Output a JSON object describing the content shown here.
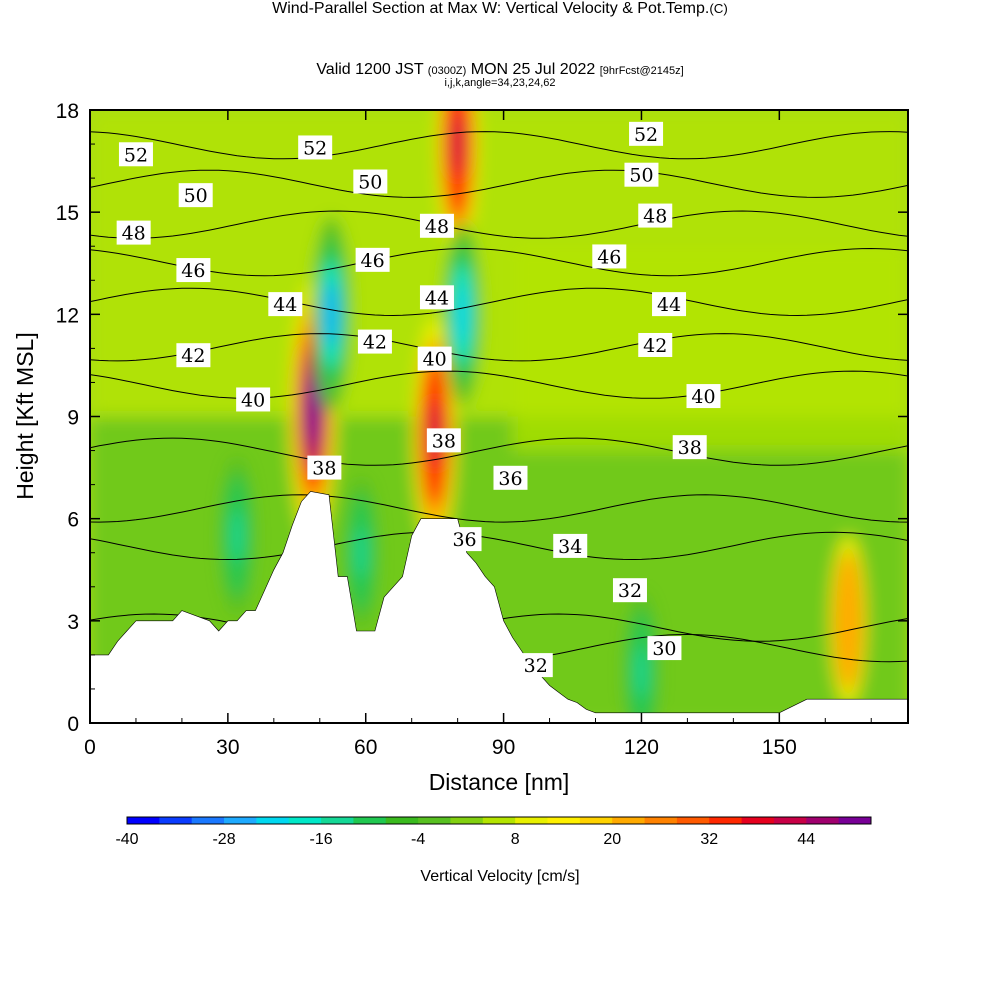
{
  "header": {
    "title": "Wind-Parallel Section at Max W: Vertical Velocity & Pot.Temp.",
    "copyright": "(C)",
    "subtitle_main": "Valid 1200 JST",
    "subtitle_utc": "(0300Z)",
    "subtitle_date": "MON 25 Jul 2022",
    "subtitle_fcst": "[9hrFcst@2145z]",
    "subtitle_params": "i,j,k,angle=34,23,24,62"
  },
  "chart_data": {
    "type": "heatmap",
    "title": "Wind-Parallel Section at Max W: Vertical Velocity & Pot.Temp.",
    "xlabel": "Distance [nm]",
    "ylabel": "Height [Kft MSL]",
    "xlim": [
      0,
      178
    ],
    "ylim": [
      0,
      18
    ],
    "xticks": [
      0,
      30,
      60,
      90,
      120,
      150
    ],
    "yticks": [
      0,
      3,
      6,
      9,
      12,
      15,
      18
    ],
    "colorbar": {
      "label": "Vertical Velocity [cm/s]",
      "ticks": [
        -40,
        -28,
        -16,
        -4,
        8,
        20,
        32,
        44
      ],
      "range": [
        -40,
        52
      ],
      "step": 4,
      "colors": [
        "#0000ff",
        "#0a3cff",
        "#1a78ff",
        "#1eaaff",
        "#00d8f0",
        "#00e8c8",
        "#14d896",
        "#20c850",
        "#3aba1e",
        "#58c020",
        "#82d010",
        "#b4e400",
        "#e8f000",
        "#fff000",
        "#ffd200",
        "#ffaa00",
        "#ff8200",
        "#ff5a00",
        "#ff2800",
        "#e6001e",
        "#c80046",
        "#a0006e",
        "#780096"
      ]
    },
    "terrain_profile": {
      "x": [
        0,
        4,
        6,
        8,
        10,
        14,
        18,
        20,
        26,
        28,
        30,
        32,
        34,
        36,
        38,
        40,
        42,
        44,
        46,
        48,
        52,
        54,
        56,
        58,
        62,
        64,
        66,
        68,
        70,
        72,
        74,
        76,
        80,
        82,
        84,
        86,
        88,
        90,
        92,
        94,
        96,
        98,
        100,
        102,
        104,
        106,
        108,
        110,
        114,
        150,
        156,
        170,
        178
      ],
      "height": [
        2,
        2,
        2.4,
        2.7,
        3,
        3,
        3,
        3.3,
        3,
        2.7,
        3,
        3,
        3.3,
        3.3,
        3.9,
        4.5,
        5,
        5.8,
        6.5,
        6.8,
        6.7,
        4.3,
        4.3,
        2.7,
        2.7,
        3.7,
        4,
        4.3,
        5.5,
        6,
        6,
        6,
        6,
        5,
        4.7,
        4.3,
        4,
        3,
        2.5,
        2.1,
        1.7,
        1.4,
        1.1,
        0.9,
        0.7,
        0.6,
        0.4,
        0.3,
        0.3,
        0.3,
        0.7,
        0.7,
        0.7
      ]
    },
    "w_features": [
      {
        "x": 48.5,
        "height": 9.2,
        "w_cm_s": 50
      },
      {
        "x": 52.5,
        "height": 12,
        "w_cm_s": -28
      },
      {
        "x": 75,
        "height": 8.5,
        "w_cm_s": 40
      },
      {
        "x": 80,
        "height": 17,
        "w_cm_s": 40
      },
      {
        "x": 81,
        "height": 12,
        "w_cm_s": -24
      },
      {
        "x": 32,
        "height": 5.5,
        "w_cm_s": -16
      },
      {
        "x": 120,
        "height": 1.5,
        "w_cm_s": -16
      },
      {
        "x": 165,
        "height": 3,
        "w_cm_s": 20
      },
      {
        "x": 59,
        "height": 5,
        "w_cm_s": -14
      }
    ],
    "theta_labels": [
      {
        "value": "52",
        "x": 10,
        "height": 16.7
      },
      {
        "value": "52",
        "x": 49,
        "height": 16.9
      },
      {
        "value": "52",
        "x": 121,
        "height": 17.3
      },
      {
        "value": "50",
        "x": 23,
        "height": 15.5
      },
      {
        "value": "50",
        "x": 61,
        "height": 15.9
      },
      {
        "value": "50",
        "x": 120,
        "height": 16.1
      },
      {
        "value": "48",
        "x": 9.5,
        "height": 14.4
      },
      {
        "value": "48",
        "x": 75.5,
        "height": 14.6
      },
      {
        "value": "48",
        "x": 123,
        "height": 14.9
      },
      {
        "value": "46",
        "x": 22.5,
        "height": 13.3
      },
      {
        "value": "46",
        "x": 61.5,
        "height": 13.6
      },
      {
        "value": "46",
        "x": 113,
        "height": 13.7
      },
      {
        "value": "44",
        "x": 42.5,
        "height": 12.3
      },
      {
        "value": "44",
        "x": 75.5,
        "height": 12.5
      },
      {
        "value": "44",
        "x": 126,
        "height": 12.3
      },
      {
        "value": "42",
        "x": 22.5,
        "height": 10.8
      },
      {
        "value": "42",
        "x": 62,
        "height": 11.2
      },
      {
        "value": "42",
        "x": 123,
        "height": 11.1
      },
      {
        "value": "40",
        "x": 35.5,
        "height": 9.5
      },
      {
        "value": "40",
        "x": 75,
        "height": 10.7
      },
      {
        "value": "40",
        "x": 133.5,
        "height": 9.6
      },
      {
        "value": "38",
        "x": 51,
        "height": 7.5
      },
      {
        "value": "38",
        "x": 77,
        "height": 8.3
      },
      {
        "value": "38",
        "x": 130.5,
        "height": 8.1
      },
      {
        "value": "36",
        "x": 91.5,
        "height": 7.2
      },
      {
        "value": "36",
        "x": 81.5,
        "height": 5.4
      },
      {
        "value": "34",
        "x": 104.5,
        "height": 5.2
      },
      {
        "value": "32",
        "x": 117.5,
        "height": 3.9
      },
      {
        "value": "32",
        "x": 97,
        "height": 1.7
      },
      {
        "value": "30",
        "x": 125,
        "height": 2.2
      }
    ]
  }
}
